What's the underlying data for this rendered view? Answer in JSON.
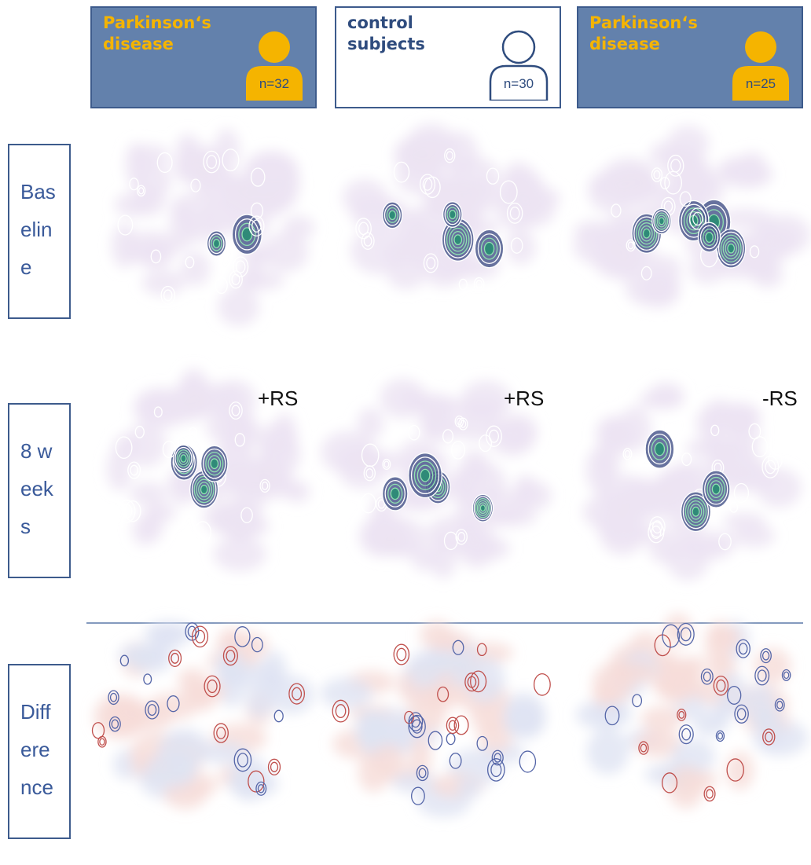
{
  "columns": [
    {
      "label": "Parkinson‘s disease",
      "n": "n=32",
      "treatment": "+RS"
    },
    {
      "label": "control subjects",
      "n": "n=30",
      "treatment": "+RS"
    },
    {
      "label": "Parkinson‘s disease",
      "n": "n=25",
      "treatment": "-RS"
    }
  ],
  "rows": [
    {
      "label": "Baseline"
    },
    {
      "label": "8 weeks"
    },
    {
      "label": "Difference"
    }
  ]
}
